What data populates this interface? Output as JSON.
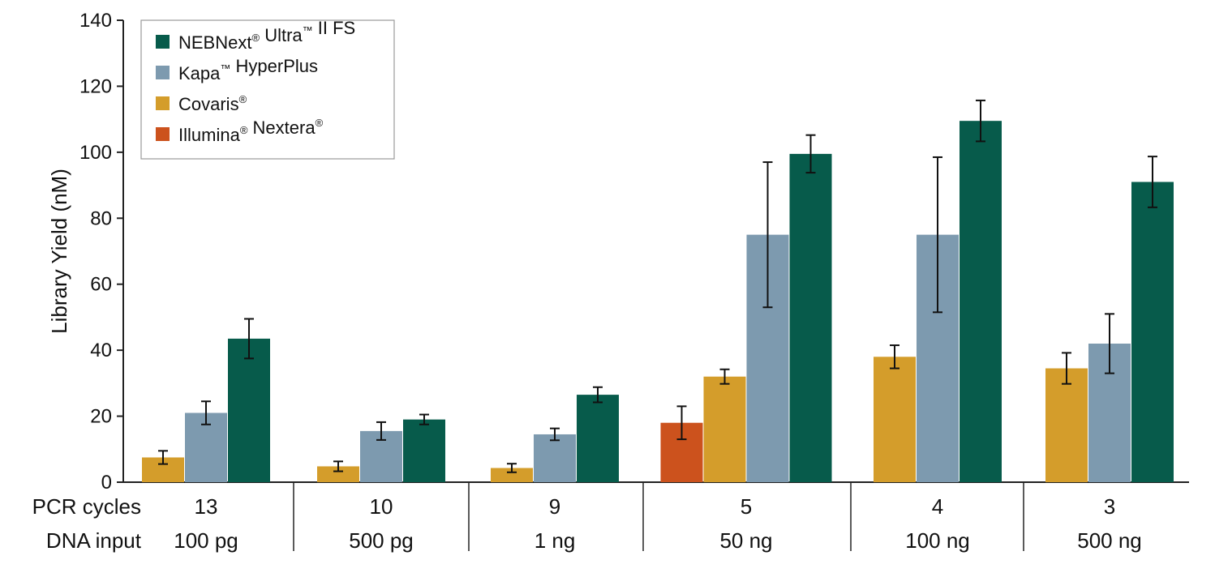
{
  "chart_data": {
    "type": "bar",
    "ylabel": "Library Yield (nM)",
    "ylim": [
      0,
      140
    ],
    "yticks": [
      0,
      20,
      40,
      60,
      80,
      100,
      120,
      140
    ],
    "legend_position": "top-left",
    "rows": [
      {
        "label": "PCR cycles",
        "values": [
          "13",
          "10",
          "9",
          "5",
          "4",
          "3"
        ]
      },
      {
        "label": "DNA input",
        "values": [
          "100 pg",
          "500 pg",
          "1 ng",
          "50 ng",
          "100 ng",
          "500 ng"
        ]
      }
    ],
    "categories": [
      "13 / 100 pg",
      "10 / 500 pg",
      "9 / 1 ng",
      "5 / 50 ng",
      "4 / 100 ng",
      "3 / 500 ng"
    ],
    "series": [
      {
        "name": "Illumina® Nextera®",
        "legend_main": [
          "Illumina",
          " Nextera"
        ],
        "color": "#cc521d",
        "values": [
          null,
          null,
          null,
          18,
          null,
          null
        ],
        "errors": [
          null,
          null,
          null,
          5,
          null,
          null
        ]
      },
      {
        "name": "Covaris®",
        "legend_main": [
          "Covaris"
        ],
        "color": "#d49d2b",
        "values": [
          7.5,
          4.8,
          4.3,
          32,
          38,
          34.5
        ],
        "errors": [
          2,
          1.5,
          1.3,
          2.2,
          3.5,
          4.7
        ]
      },
      {
        "name": "Kapa™ HyperPlus",
        "legend_main": [
          "Kapa",
          " HyperPlus"
        ],
        "color": "#7d9aaf",
        "values": [
          21,
          15.5,
          14.5,
          75,
          75,
          42
        ],
        "errors": [
          3.5,
          2.7,
          1.8,
          22,
          23.5,
          9
        ]
      },
      {
        "name": "NEBNext® Ultra™ II FS",
        "legend_main": [
          "NEBNext",
          " Ultra",
          " II FS"
        ],
        "color": "#075b4b",
        "values": [
          43.5,
          19,
          26.5,
          99.5,
          109.5,
          91
        ],
        "errors": [
          6,
          1.5,
          2.3,
          5.7,
          6.2,
          7.7
        ]
      }
    ],
    "legend_order": [
      3,
      2,
      1,
      0
    ],
    "legend_sups": [
      [
        "®",
        "™",
        ""
      ],
      [
        "™",
        ""
      ],
      [
        "®"
      ],
      [
        "®",
        "®"
      ]
    ]
  }
}
